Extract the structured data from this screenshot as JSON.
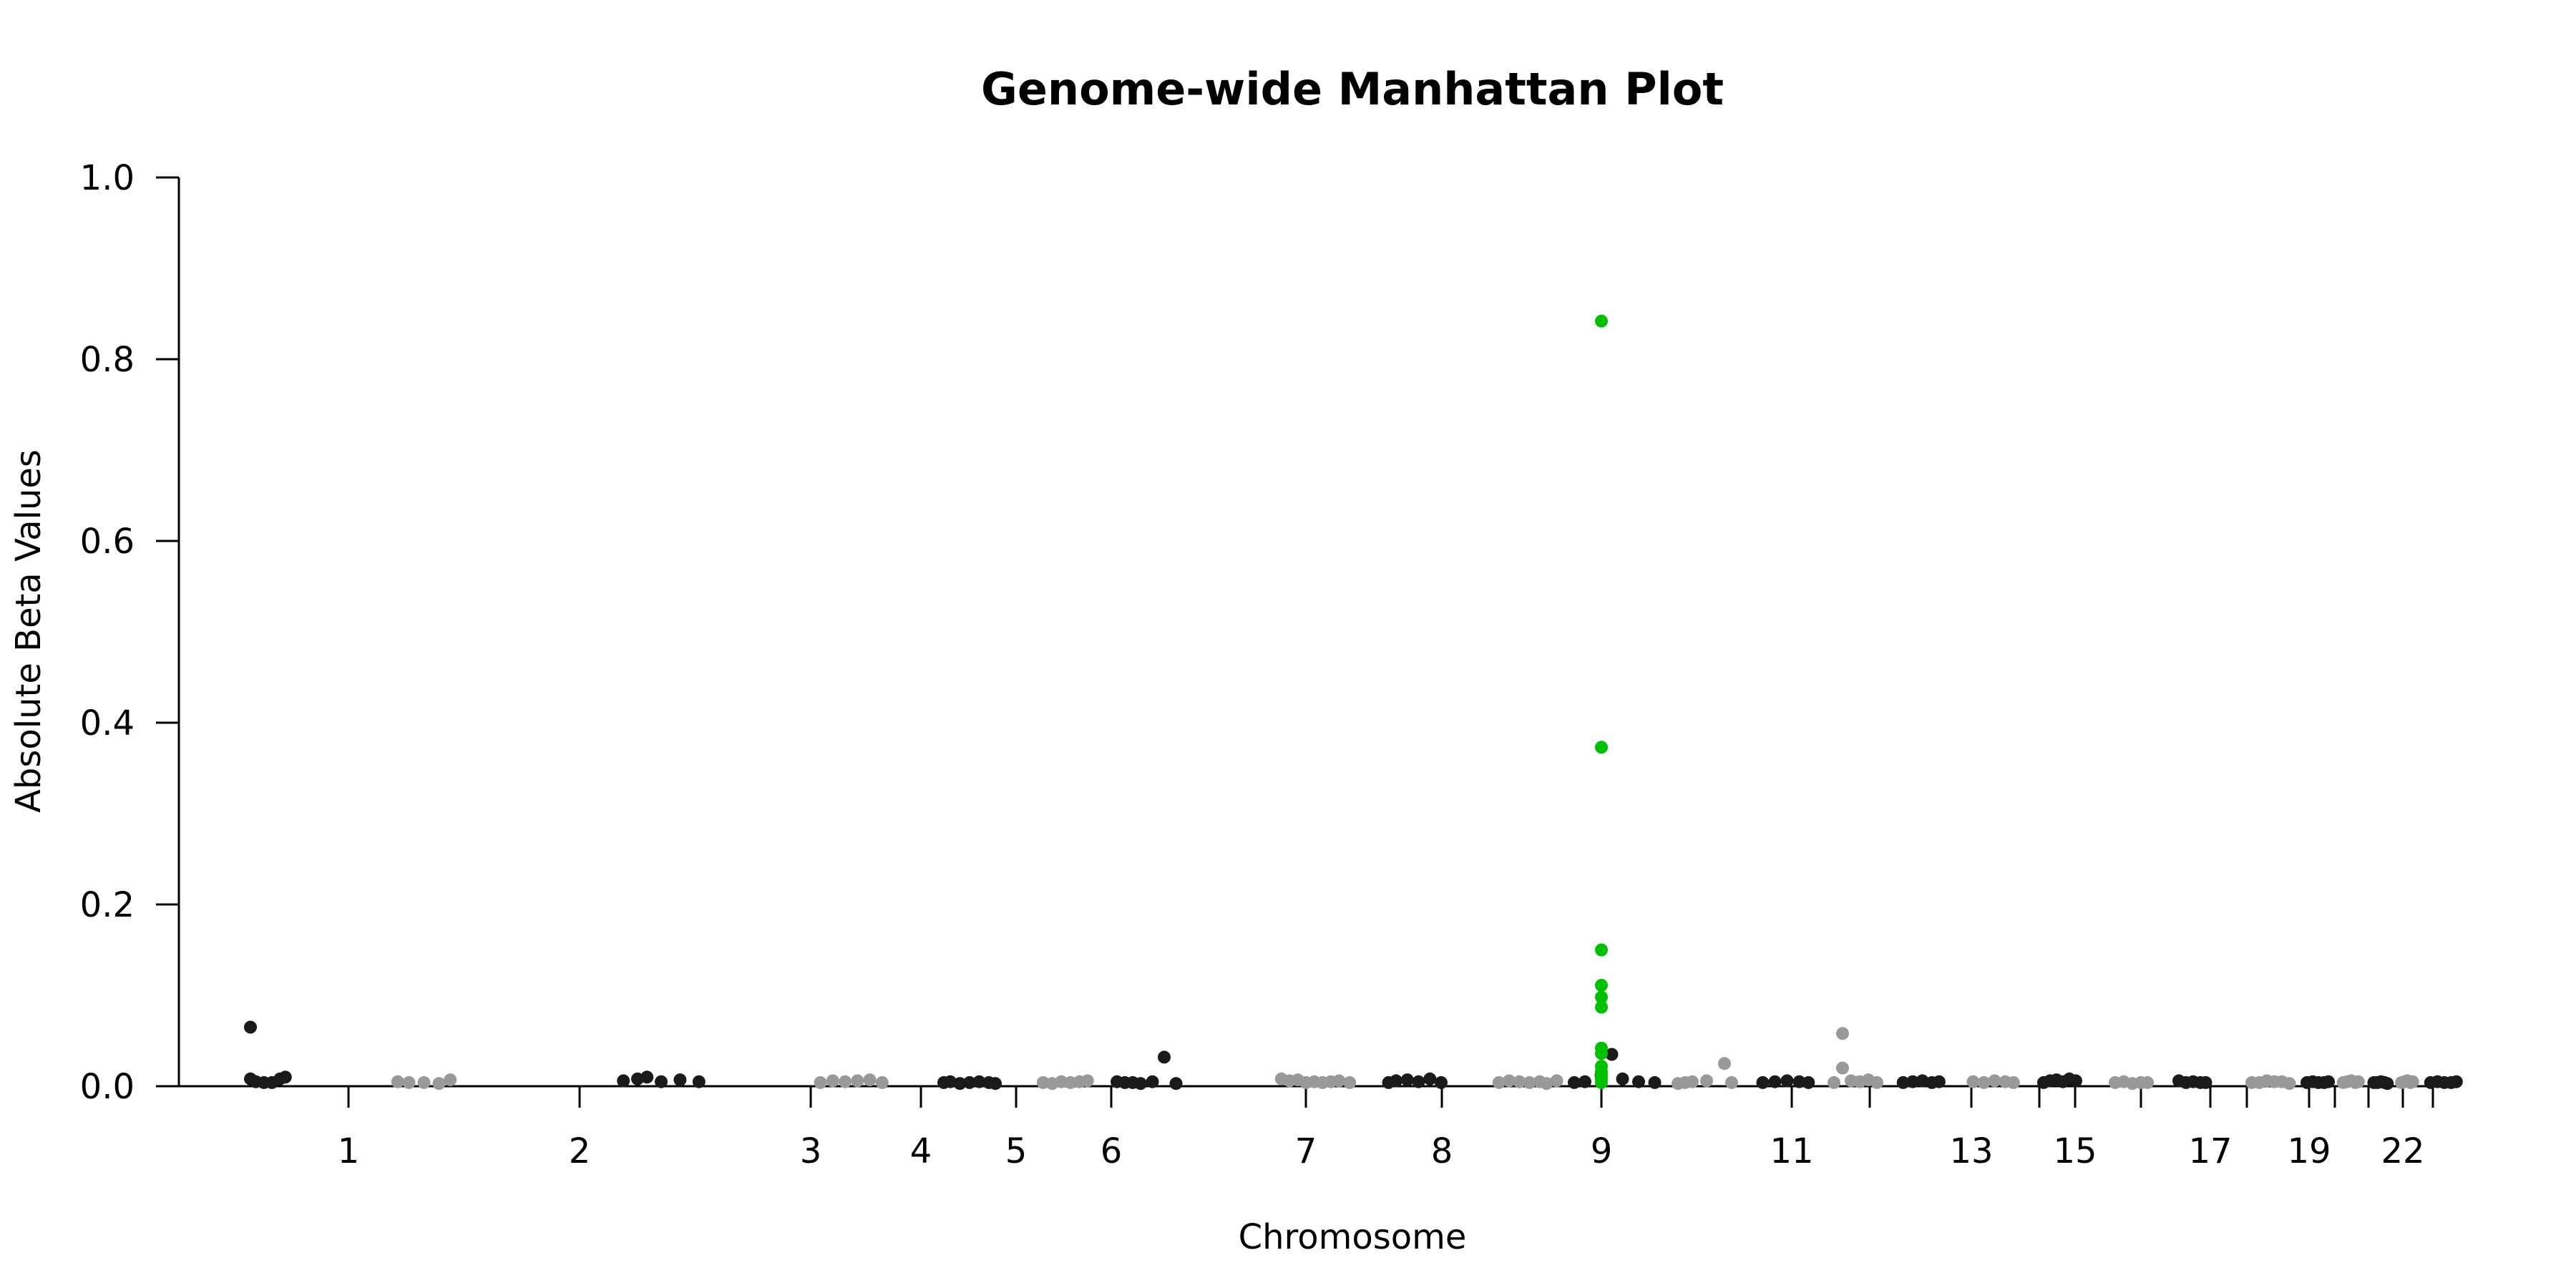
{
  "chart_data": {
    "type": "scatter",
    "title": "Genome-wide Manhattan Plot",
    "xlabel": "Chromosome",
    "ylabel": "Absolute Beta Values",
    "ylim": [
      0,
      1.0
    ],
    "y_ticks": [
      0.0,
      0.2,
      0.4,
      0.6,
      0.8,
      1.0
    ],
    "y_tick_labels": [
      "0.0",
      "0.2",
      "0.4",
      "0.6",
      "0.8",
      "1.0"
    ],
    "x_tick_labels": [
      "1",
      "2",
      "3",
      "4",
      "5",
      "6",
      "7",
      "8",
      "9",
      "11",
      "13",
      "15",
      "17",
      "19",
      "22"
    ],
    "grid": false,
    "legend": "none",
    "colors": {
      "dark": "#1a1a1a",
      "light": "#999999",
      "highlight": "#00c000"
    },
    "chromosomes": [
      {
        "chr": "1",
        "dots": [
          [
            0.2,
            0.065
          ],
          [
            0.2,
            0.008
          ],
          [
            0.3,
            0.005
          ],
          [
            0.45,
            0.004
          ],
          [
            0.6,
            0.004
          ],
          [
            0.75,
            0.008
          ],
          [
            0.85,
            0.01
          ]
        ]
      },
      {
        "chr": "2",
        "dots": [
          [
            0.15,
            0.005
          ],
          [
            0.3,
            0.004
          ],
          [
            0.5,
            0.004
          ],
          [
            0.7,
            0.003
          ],
          [
            0.85,
            0.007
          ]
        ]
      },
      {
        "chr": "3",
        "dots": [
          [
            0.1,
            0.006
          ],
          [
            0.25,
            0.008
          ],
          [
            0.35,
            0.01
          ],
          [
            0.5,
            0.005
          ],
          [
            0.7,
            0.007
          ],
          [
            0.9,
            0.005
          ]
        ]
      },
      {
        "chr": "4",
        "dots": [
          [
            0.1,
            0.004
          ],
          [
            0.25,
            0.006
          ],
          [
            0.4,
            0.005
          ],
          [
            0.55,
            0.006
          ],
          [
            0.7,
            0.007
          ],
          [
            0.85,
            0.004
          ]
        ]
      },
      {
        "chr": "5",
        "dots": [
          [
            0.1,
            0.004
          ],
          [
            0.2,
            0.005
          ],
          [
            0.35,
            0.003
          ],
          [
            0.5,
            0.004
          ],
          [
            0.65,
            0.005
          ],
          [
            0.8,
            0.004
          ],
          [
            0.9,
            0.003
          ]
        ]
      },
      {
        "chr": "6",
        "dots": [
          [
            0.15,
            0.004
          ],
          [
            0.3,
            0.003
          ],
          [
            0.45,
            0.005
          ],
          [
            0.6,
            0.004
          ],
          [
            0.75,
            0.005
          ],
          [
            0.88,
            0.006
          ]
        ]
      },
      {
        "chr": "7",
        "dots": [
          [
            0.1,
            0.005
          ],
          [
            0.2,
            0.004
          ],
          [
            0.3,
            0.004
          ],
          [
            0.4,
            0.003
          ],
          [
            0.55,
            0.005
          ],
          [
            0.7,
            0.032
          ],
          [
            0.85,
            0.003
          ]
        ]
      },
      {
        "chr": "8",
        "dots": [
          [
            0.05,
            0.008
          ],
          [
            0.15,
            0.006
          ],
          [
            0.25,
            0.007
          ],
          [
            0.35,
            0.004
          ],
          [
            0.45,
            0.005
          ],
          [
            0.55,
            0.004
          ],
          [
            0.65,
            0.005
          ],
          [
            0.75,
            0.006
          ],
          [
            0.88,
            0.004
          ]
        ]
      },
      {
        "chr": "9",
        "dots": [
          [
            0.1,
            0.004
          ],
          [
            0.2,
            0.006
          ],
          [
            0.35,
            0.007
          ],
          [
            0.5,
            0.005
          ],
          [
            0.65,
            0.008
          ],
          [
            0.8,
            0.004
          ]
        ]
      },
      {
        "chr": "10",
        "dots": [
          [
            0.05,
            0.004
          ],
          [
            0.2,
            0.006
          ],
          [
            0.35,
            0.005
          ],
          [
            0.5,
            0.004
          ],
          [
            0.65,
            0.005
          ],
          [
            0.75,
            0.003
          ],
          [
            0.9,
            0.006
          ]
        ]
      },
      {
        "chr": "11",
        "dots": [
          [
            0.1,
            0.004
          ],
          [
            0.2,
            0.005
          ],
          [
            0.35,
            0.012
          ],
          [
            0.45,
            0.035
          ],
          [
            0.55,
            0.008
          ],
          [
            0.7,
            0.005
          ],
          [
            0.85,
            0.004
          ]
        ]
      },
      {
        "chr": "12",
        "dots": [
          [
            0.1,
            0.003
          ],
          [
            0.2,
            0.004
          ],
          [
            0.3,
            0.005
          ],
          [
            0.5,
            0.006
          ],
          [
            0.75,
            0.025
          ],
          [
            0.85,
            0.004
          ]
        ]
      },
      {
        "chr": "13",
        "dots": [
          [
            0.1,
            0.004
          ],
          [
            0.3,
            0.005
          ],
          [
            0.5,
            0.006
          ],
          [
            0.7,
            0.005
          ],
          [
            0.85,
            0.004
          ]
        ]
      },
      {
        "chr": "14",
        "dots": [
          [
            0.1,
            0.004
          ],
          [
            0.25,
            0.058
          ],
          [
            0.25,
            0.02
          ],
          [
            0.4,
            0.006
          ],
          [
            0.55,
            0.005
          ],
          [
            0.7,
            0.007
          ],
          [
            0.85,
            0.004
          ]
        ]
      },
      {
        "chr": "15",
        "dots": [
          [
            0.1,
            0.004
          ],
          [
            0.3,
            0.005
          ],
          [
            0.5,
            0.006
          ],
          [
            0.7,
            0.004
          ],
          [
            0.85,
            0.005
          ]
        ]
      },
      {
        "chr": "16",
        "dots": [
          [
            0.1,
            0.005
          ],
          [
            0.3,
            0.004
          ],
          [
            0.5,
            0.006
          ],
          [
            0.7,
            0.005
          ],
          [
            0.85,
            0.004
          ]
        ]
      },
      {
        "chr": "17",
        "dots": [
          [
            0.1,
            0.004
          ],
          [
            0.25,
            0.006
          ],
          [
            0.4,
            0.007
          ],
          [
            0.55,
            0.005
          ],
          [
            0.7,
            0.008
          ],
          [
            0.85,
            0.006
          ]
        ]
      },
      {
        "chr": "18",
        "dots": [
          [
            0.1,
            0.004
          ],
          [
            0.3,
            0.005
          ],
          [
            0.5,
            0.003
          ],
          [
            0.7,
            0.004
          ],
          [
            0.85,
            0.004
          ]
        ]
      },
      {
        "chr": "19",
        "dots": [
          [
            0.1,
            0.006
          ],
          [
            0.3,
            0.004
          ],
          [
            0.5,
            0.005
          ],
          [
            0.7,
            0.004
          ],
          [
            0.85,
            0.004
          ]
        ]
      },
      {
        "chr": "20",
        "dots": [
          [
            0.1,
            0.004
          ],
          [
            0.25,
            0.004
          ],
          [
            0.4,
            0.006
          ],
          [
            0.55,
            0.005
          ],
          [
            0.7,
            0.005
          ],
          [
            0.85,
            0.003
          ]
        ]
      },
      {
        "chr": "21",
        "dots": [
          [
            0.1,
            0.004
          ],
          [
            0.3,
            0.005
          ],
          [
            0.5,
            0.004
          ],
          [
            0.7,
            0.004
          ],
          [
            0.85,
            0.005
          ]
        ]
      },
      {
        "chr": "22",
        "dots": [
          [
            0.1,
            0.004
          ],
          [
            0.3,
            0.005
          ],
          [
            0.5,
            0.006
          ],
          [
            0.7,
            0.004
          ],
          [
            0.85,
            0.005
          ]
        ]
      },
      {
        "chr": "23",
        "dots": [
          [
            0.1,
            0.004
          ],
          [
            0.3,
            0.004
          ],
          [
            0.5,
            0.005
          ],
          [
            0.7,
            0.004
          ],
          [
            0.85,
            0.003
          ]
        ]
      },
      {
        "chr": "24",
        "dots": [
          [
            0.1,
            0.004
          ],
          [
            0.3,
            0.005
          ],
          [
            0.5,
            0.006
          ],
          [
            0.7,
            0.004
          ],
          [
            0.85,
            0.005
          ]
        ]
      },
      {
        "chr": "25",
        "dots": [
          [
            0.1,
            0.004
          ],
          [
            0.3,
            0.005
          ],
          [
            0.5,
            0.004
          ],
          [
            0.7,
            0.004
          ],
          [
            0.85,
            0.005
          ]
        ]
      }
    ],
    "highlighted_hits": [
      0.842,
      0.373,
      0.15,
      0.111,
      0.098,
      0.087,
      0.042,
      0.036,
      0.022,
      0.016,
      0.012,
      0.008,
      0.004
    ]
  }
}
